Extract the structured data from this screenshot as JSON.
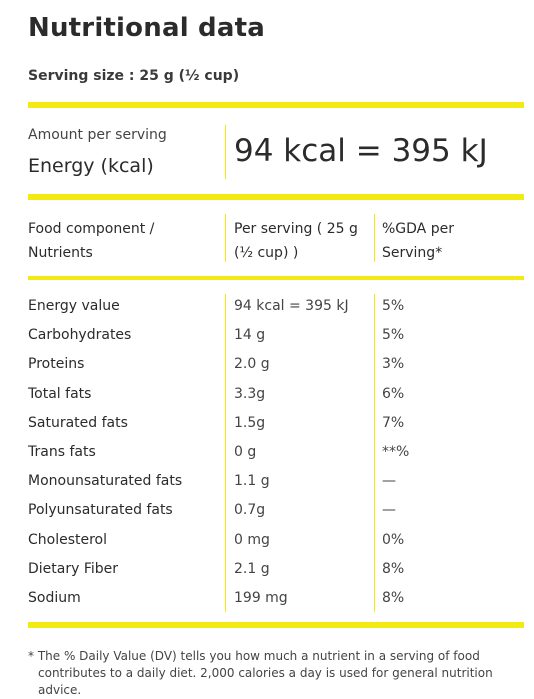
{
  "title": "Nutritional data",
  "serving_size": "Serving size : 25 g (½ cup)",
  "energy": {
    "amount_label": "Amount per serving",
    "label": "Energy (kcal)",
    "value": "94 kcal = 395 kJ"
  },
  "table": {
    "headers": {
      "component_line1": "Food component /",
      "component_line2": "Nutrients",
      "per_serving_line1": "Per serving ( 25 g",
      "per_serving_line2": "(½ cup) )",
      "gda_line1": "%GDA per",
      "gda_line2": "Serving*"
    },
    "rows": [
      {
        "name": "Energy value",
        "value": "94 kcal = 395 kJ",
        "gda": "5%"
      },
      {
        "name": "Carbohydrates",
        "value": "14 g",
        "gda": "5%"
      },
      {
        "name": "Proteins",
        "value": "2.0 g",
        "gda": "3%"
      },
      {
        "name": "Total fats",
        "value": "3.3g",
        "gda": "6%"
      },
      {
        "name": "Saturated fats",
        "value": "1.5g",
        "gda": "7%"
      },
      {
        "name": "Trans fats",
        "value": "0 g",
        "gda": "**%"
      },
      {
        "name": "Monounsaturated fats",
        "value": "1.1 g",
        "gda": "—"
      },
      {
        "name": "Polyunsaturated fats",
        "value": "0.7g",
        "gda": "—"
      },
      {
        "name": "Cholesterol",
        "value": "0 mg",
        "gda": "0%"
      },
      {
        "name": "Dietary Fiber",
        "value": "2.1 g",
        "gda": "8%"
      },
      {
        "name": "Sodium",
        "value": "199 mg",
        "gda": "8%"
      }
    ]
  },
  "footnote": {
    "line1": "* The % Daily Value (DV) tells you how much a nutrient in a serving of food",
    "line2": "contributes to a daily diet. 2,000 calories a day is used for general nutrition advice."
  },
  "colors": {
    "accent_yellow": "#f3ea14",
    "text": "#2b2b2b"
  }
}
